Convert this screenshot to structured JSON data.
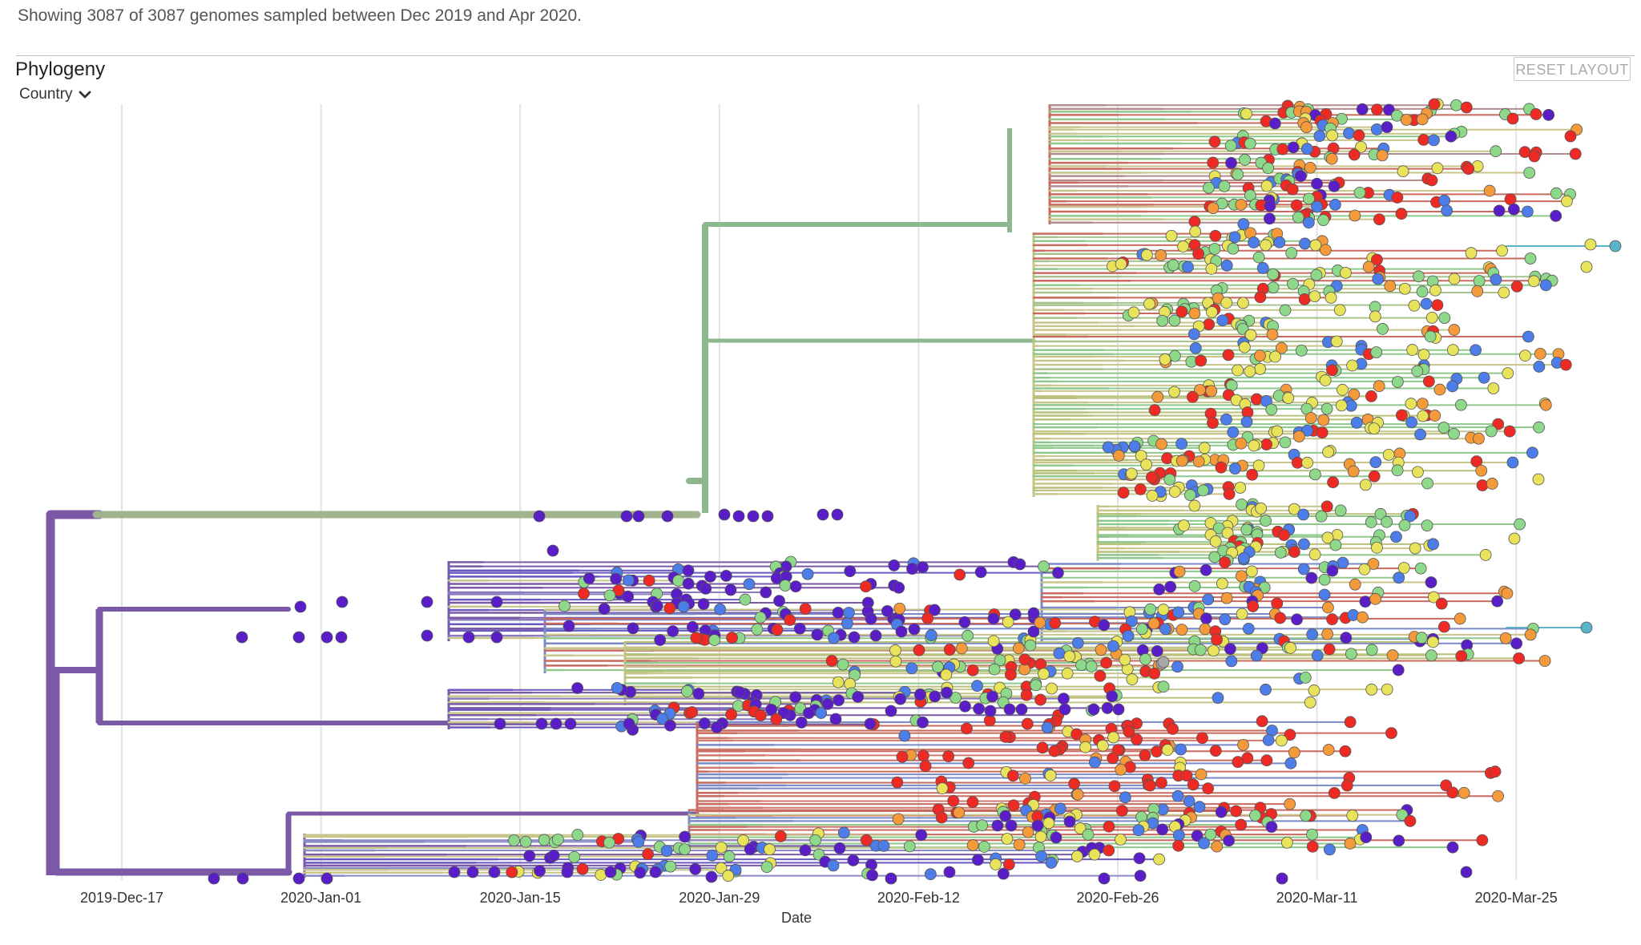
{
  "header": {
    "summary": "Showing 3087 of 3087 genomes sampled between Dec 2019 and Apr 2020."
  },
  "panel": {
    "title": "Phylogeny",
    "color_by": "Country",
    "color_by_icon": "chevron-down-icon",
    "reset_label": "RESET LAYOUT"
  },
  "chart_data": {
    "type": "scatter",
    "subtype": "time-scaled phylogenetic tree",
    "xlabel": "Date",
    "x_ticks": [
      "2019-Dec-17",
      "2020-Jan-01",
      "2020-Jan-15",
      "2020-Jan-29",
      "2020-Feb-12",
      "2020-Feb-26",
      "2020-Mar-11",
      "2020-Mar-25"
    ],
    "grid": true,
    "total_genomes": 3087,
    "color_palette": {
      "purple": "#6a3fa9",
      "deep-purple": "#5a1ec8",
      "blue": "#4c7de8",
      "teal": "#5ab4c8",
      "green": "#8ed88a",
      "yellow": "#e8e35a",
      "orange": "#f59a3a",
      "red": "#ee2a24",
      "grey": "#a8a8a8"
    },
    "branch_colors": {
      "trunk": "#7a5aa6",
      "upper-clade": "#8db88f",
      "lower-clade": "#c96a5e",
      "olive": "#c7c58a"
    }
  }
}
